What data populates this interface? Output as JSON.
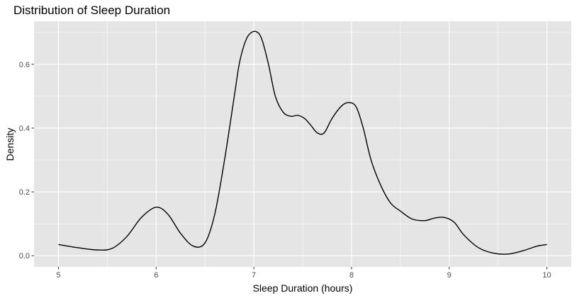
{
  "chart_data": {
    "type": "line",
    "title": "Distribution of Sleep Duration",
    "xlabel": "Sleep Duration (hours)",
    "ylabel": "Density",
    "xlim": [
      4.75,
      10.25
    ],
    "ylim": [
      -0.035,
      0.735
    ],
    "x_ticks": [
      5,
      6,
      7,
      8,
      9,
      10
    ],
    "x_tick_labels": [
      "5",
      "6",
      "7",
      "8",
      "9",
      "10"
    ],
    "y_ticks": [
      0.0,
      0.2,
      0.4,
      0.6
    ],
    "y_tick_labels": [
      "0.0",
      "0.2",
      "0.4",
      "0.6"
    ],
    "grid": true,
    "colors": {
      "panel": "#e5e5e5",
      "grid": "#ffffff",
      "line": "#000000"
    },
    "series": [
      {
        "x": [
          5.0,
          5.2,
          5.4,
          5.55,
          5.7,
          5.85,
          6.0,
          6.12,
          6.25,
          6.38,
          6.5,
          6.6,
          6.7,
          6.8,
          6.85,
          6.9,
          6.95,
          7.02,
          7.08,
          7.15,
          7.22,
          7.3,
          7.38,
          7.45,
          7.52,
          7.58,
          7.65,
          7.72,
          7.8,
          7.9,
          7.98,
          8.05,
          8.12,
          8.2,
          8.3,
          8.4,
          8.5,
          8.62,
          8.75,
          8.85,
          8.95,
          9.05,
          9.15,
          9.3,
          9.45,
          9.6,
          9.75,
          9.9,
          10.0
        ],
        "y": [
          0.035,
          0.025,
          0.018,
          0.023,
          0.06,
          0.12,
          0.152,
          0.13,
          0.07,
          0.03,
          0.04,
          0.13,
          0.3,
          0.5,
          0.6,
          0.66,
          0.693,
          0.703,
          0.68,
          0.6,
          0.5,
          0.45,
          0.437,
          0.44,
          0.43,
          0.41,
          0.385,
          0.385,
          0.43,
          0.47,
          0.48,
          0.465,
          0.4,
          0.3,
          0.22,
          0.165,
          0.14,
          0.115,
          0.11,
          0.118,
          0.12,
          0.105,
          0.065,
          0.025,
          0.008,
          0.005,
          0.015,
          0.03,
          0.035
        ]
      }
    ]
  }
}
